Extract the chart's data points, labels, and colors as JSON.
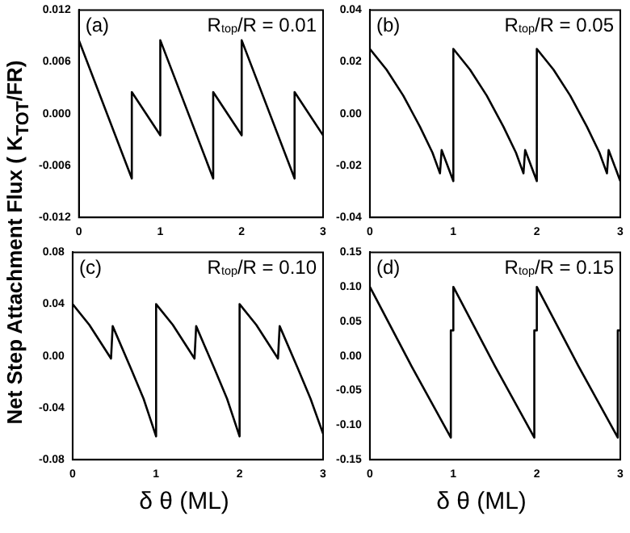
{
  "chart_data": [
    {
      "type": "line",
      "ylabel": "Net Step Attachment Flux ( K$_{TOT}$/FR)",
      "annotations": [
        "(a)",
        "R$_{top}$/R = 0.01"
      ],
      "color": "#000000",
      "x": [
        0,
        0.65,
        0.65,
        1,
        1,
        1.65,
        1.65,
        2,
        2,
        2.65,
        2.65,
        3
      ],
      "values": [
        0.0085,
        -0.0075,
        0.0025,
        -0.0025,
        0.0085,
        -0.0075,
        0.0025,
        -0.0025,
        0.0085,
        -0.0075,
        0.0025,
        -0.0025
      ],
      "xlim": [
        0,
        3
      ],
      "xticks": [
        0,
        1,
        2,
        3
      ],
      "ylim": [
        -0.012,
        0.012
      ],
      "yticks": [
        -0.012,
        -0.006,
        {
          "value": 0,
          "label": "0.000"
        },
        0.006,
        0.012
      ]
    },
    {
      "type": "line",
      "annotations": [
        "(b)",
        "R$_{top}$/R = 0.05"
      ],
      "color": "#000000",
      "x": [
        0,
        0.2,
        0.4,
        0.6,
        0.75,
        0.84,
        0.86,
        1,
        1,
        1.2,
        1.4,
        1.6,
        1.75,
        1.84,
        1.86,
        2,
        2,
        2.2,
        2.4,
        2.6,
        2.75,
        2.84,
        2.86,
        3
      ],
      "values": [
        0.025,
        0.017,
        0.007,
        -0.005,
        -0.015,
        -0.023,
        -0.014,
        -0.026,
        0.025,
        0.017,
        0.007,
        -0.005,
        -0.015,
        -0.023,
        -0.014,
        -0.026,
        0.025,
        0.017,
        0.007,
        -0.005,
        -0.015,
        -0.023,
        -0.014,
        -0.026
      ],
      "xlim": [
        0,
        3
      ],
      "xticks": [
        0,
        1,
        2,
        3
      ],
      "ylim": [
        -0.04,
        0.04
      ],
      "yticks": [
        -0.04,
        -0.02,
        {
          "value": 0,
          "label": "0.00"
        },
        0.02,
        0.04
      ]
    },
    {
      "type": "line",
      "xlabel": "δ θ (ML)",
      "annotations": [
        "(c)",
        "R$_{top}$/R = 0.10"
      ],
      "color": "#000000",
      "x": [
        0,
        0.2,
        0.46,
        0.48,
        0.7,
        0.85,
        1,
        1,
        1.2,
        1.46,
        1.48,
        1.7,
        1.85,
        2,
        2,
        2.2,
        2.46,
        2.48,
        2.7,
        2.85,
        3
      ],
      "values": [
        0.04,
        0.024,
        -0.002,
        0.023,
        -0.01,
        -0.033,
        -0.062,
        0.04,
        0.024,
        -0.002,
        0.023,
        -0.01,
        -0.033,
        -0.062,
        0.04,
        0.024,
        -0.002,
        0.023,
        -0.01,
        -0.033,
        -0.06
      ],
      "xlim": [
        0,
        3
      ],
      "xticks": [
        0,
        1,
        2,
        3
      ],
      "ylim": [
        -0.08,
        0.08
      ],
      "yticks": [
        -0.08,
        -0.04,
        {
          "value": 0,
          "label": "0.00"
        },
        0.04,
        0.08
      ]
    },
    {
      "type": "line",
      "xlabel": "δ θ (ML)",
      "annotations": [
        "(d)",
        "R$_{top}$/R = 0.15"
      ],
      "color": "#000000",
      "x": [
        0,
        0.5,
        0.97,
        0.97,
        1,
        1,
        1.5,
        1.97,
        1.97,
        2,
        2,
        2.5,
        2.97,
        2.97,
        3
      ],
      "values": [
        0.1,
        -0.015,
        -0.118,
        0.037,
        0.037,
        0.1,
        -0.015,
        -0.118,
        0.037,
        0.037,
        0.1,
        -0.015,
        -0.118,
        0.037,
        0.037
      ],
      "xlim": [
        0,
        3
      ],
      "xticks": [
        0,
        1,
        2,
        3
      ],
      "ylim": [
        -0.15,
        0.15
      ],
      "yticks": [
        -0.15,
        {
          "value": -0.1,
          "label": "-0.10"
        },
        -0.05,
        {
          "value": 0,
          "label": "0.00"
        },
        0.05,
        {
          "value": 0.1,
          "label": "0.10"
        },
        0.15
      ]
    }
  ]
}
